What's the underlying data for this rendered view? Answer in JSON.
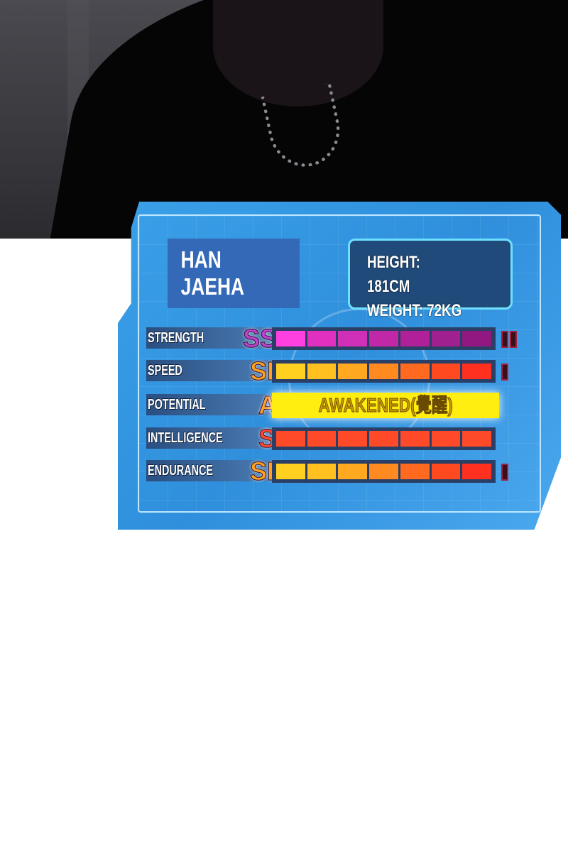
{
  "card": {
    "name": "HAN JAEHA",
    "height": "HEIGHT: 181CM",
    "weight": "WEIGHT: 72KG",
    "stats": [
      {
        "label": "STRENGTH",
        "rank": "SSR",
        "rank_color": "#c040d0",
        "colors": [
          "#ff40e0",
          "#e030c0",
          "#d030b8",
          "#c028a8",
          "#b02098",
          "#a02090",
          "#901880"
        ],
        "extra_marks": 2
      },
      {
        "label": "SPEED",
        "rank": "SR",
        "rank_color": "#ffa020",
        "colors": [
          "#ffd020",
          "#ffc020",
          "#ffa820",
          "#ff8a20",
          "#ff6a20",
          "#ff4a20",
          "#ff3020"
        ],
        "extra_marks": 1
      },
      {
        "label": "POTENTIAL",
        "rank": "A",
        "rank_color": "#ff9a30",
        "awakened": "AWAKENED(覺醒)",
        "extra_marks": 0
      },
      {
        "label": "INTELLIGENCE",
        "rank": "S",
        "rank_color": "#ff4a30",
        "colors": [
          "#ff4a2a",
          "#ff4a2a",
          "#ff4a2a",
          "#ff4a2a",
          "#ff4a2a",
          "#ff4a2a",
          "#ff4a2a"
        ],
        "extra_marks": 0
      },
      {
        "label": "ENDURANCE",
        "rank": "SR",
        "rank_color": "#ffa020",
        "colors": [
          "#ffd020",
          "#ffc020",
          "#ffa820",
          "#ff8a20",
          "#ff6a20",
          "#ff4a20",
          "#ff3020"
        ],
        "extra_marks": 1
      }
    ]
  }
}
